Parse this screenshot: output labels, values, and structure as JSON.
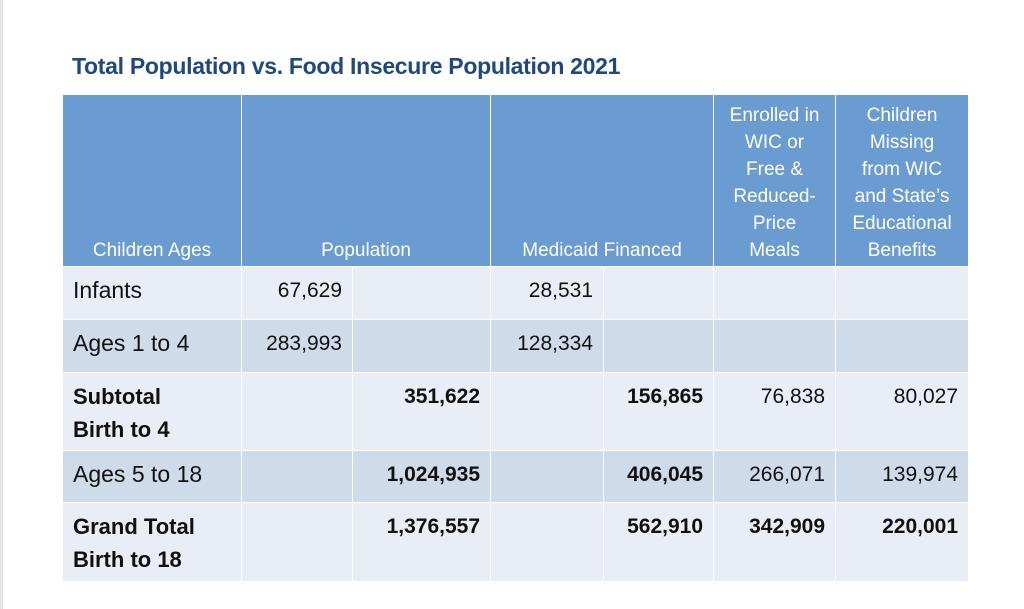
{
  "title": "Total Population vs. Food Insecure Population 2021",
  "headers": {
    "ages": "Children Ages",
    "population": "Population",
    "medicaid": "Medicaid Financed",
    "wic_l1": "Enrolled in",
    "wic_l2": "WIC or",
    "wic_l3": "Free &",
    "wic_l4": "Reduced-",
    "wic_l5": "Price",
    "wic_l6": "Meals",
    "miss_l1": "Children",
    "miss_l2": "Missing",
    "miss_l3": "from WIC",
    "miss_l4": "and State’s",
    "miss_l5": "Educational",
    "miss_l6": "Benefits"
  },
  "rows": {
    "infants": {
      "label": "Infants",
      "pop": "67,629",
      "pop_total": "",
      "med": "28,531",
      "med_total": "",
      "wic": "",
      "missing": ""
    },
    "ages1to4": {
      "label": "Ages 1 to 4",
      "pop": "283,993",
      "pop_total": "",
      "med": "128,334",
      "med_total": "",
      "wic": "",
      "missing": ""
    },
    "subtotal": {
      "label_l1": "Subtotal",
      "label_l2": "Birth to 4",
      "pop": "",
      "pop_total": "351,622",
      "med": "",
      "med_total": "156,865",
      "wic": "76,838",
      "missing": "80,027"
    },
    "ages5to18": {
      "label": "Ages 5 to 18",
      "pop": "",
      "pop_total": "1,024,935",
      "med": "",
      "med_total": "406,045",
      "wic": "266,071",
      "missing": "139,974"
    },
    "grand": {
      "label_l1": "Grand Total",
      "label_l2": "Birth to 18",
      "pop": "",
      "pop_total": "1,376,557",
      "med": "",
      "med_total": "562,910",
      "wic": "342,909",
      "missing": "220,001"
    }
  }
}
